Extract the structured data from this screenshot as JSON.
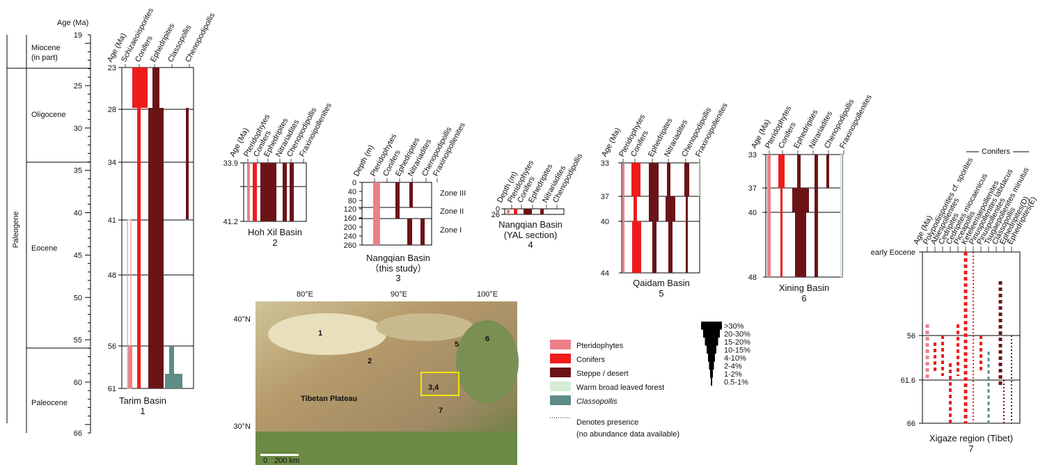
{
  "timescale": {
    "axis_label": "Age (Ma)",
    "ticks": [
      19,
      25,
      30,
      35,
      40,
      45,
      50,
      55,
      60,
      66
    ],
    "era": "Paleogene",
    "epochs": [
      "Miocene",
      "(in part)",
      "Oligocene",
      "Eocene",
      "Paleocene"
    ]
  },
  "panels": [
    {
      "headers": [
        "Age (Ma)",
        "Schizaeoisporites",
        "Conifers",
        "Ephedripites",
        "Classopollis",
        "Chenopodipollis"
      ],
      "ticks": [
        23,
        28,
        34,
        41,
        48,
        56,
        61
      ],
      "caption": "Tarim Basin",
      "number": 1
    },
    {
      "headers": [
        "Age (Ma)",
        "Pteridophytes",
        "Conifers",
        "Ephedripites",
        "Nitrariadites",
        "Chenopodipollis",
        "Fraxinoipollenites"
      ],
      "ticks": [
        33.9,
        41.2
      ],
      "caption": "Hoh Xil Basin",
      "number": 2
    },
    {
      "headers": [
        "Depth (m)",
        "Pteridophytes",
        "Conifers",
        "Ephedripites",
        "Nitrariadites",
        "Chenopodipollis",
        "Fraxinoipollenites"
      ],
      "ticks": [
        0,
        40,
        80,
        120,
        160,
        200,
        240,
        260
      ],
      "caption": "Nangqian Basin",
      "subcaption": "（this study）",
      "number": 3,
      "zones": [
        "Zone III",
        "Zone II",
        "Zone I"
      ]
    },
    {
      "headers": [
        "Depth (m)",
        "Pteridophytes",
        "Conifers",
        "Ephedripites",
        "Nitrariadites",
        "Chenopodipollis"
      ],
      "ticks": [
        0,
        26
      ],
      "caption": "Nangqian Basin",
      "subcaption": "(YAL section)",
      "number": 4
    },
    {
      "headers": [
        "Age (Ma)",
        "Pteridophytes",
        "Conifers",
        "Ephedripites",
        "Nitrariadites",
        "Chenopodipollis",
        "Fraxinoipollenites"
      ],
      "ticks": [
        33,
        37,
        40,
        44
      ],
      "caption": "Qaidam Basin",
      "number": 5
    },
    {
      "headers": [
        "Age (Ma)",
        "Pteridophytes",
        "Conifers",
        "Ephedripites",
        "Nitrariadites",
        "Chenopodipollis",
        "Fraxinoipollenites"
      ],
      "ticks": [
        33,
        37,
        40,
        48
      ],
      "caption": "Xining Basin",
      "number": 6
    },
    {
      "headers": [
        "Age (Ma)",
        "Polypodiisporites cf. sporites",
        "Abiespollenites",
        "Cedripites",
        "Cedripites miocaenicus",
        "Piceapollis",
        "Keteleeriaepollenites",
        "Pinuspollenites labdacus",
        "Pinuspollenites",
        "Tsugaepollenites minutus",
        "Classopollis",
        "Ephedripites(D)",
        "Ephedripites(E)"
      ],
      "ticks": [
        "early Eocene",
        56,
        61.6,
        66
      ],
      "caption": "Xigaze region (Tibet)",
      "number": 7,
      "group_label": "Conifers"
    }
  ],
  "map": {
    "lon_labels": [
      "80°E",
      "90°E",
      "100°E"
    ],
    "lat_labels": [
      "40°N",
      "30°N"
    ],
    "site_labels": [
      1,
      2,
      "3,4",
      5,
      6,
      7
    ],
    "region": "Tibetan Plateau",
    "scale": [
      0,
      "200 km"
    ]
  },
  "legend": {
    "items": [
      "Pteridophytes",
      "Conifers",
      "Steppe / desert",
      "Warm broad leaved forest",
      "Classopollis"
    ],
    "presence": [
      "Denotes presence",
      "(no abundance data available)"
    ],
    "abundance": [
      ">30%",
      "20-30%",
      "15-20%",
      "10-15%",
      "4-10%",
      "2-4%",
      "1-2%",
      "0.5-1%"
    ]
  }
}
